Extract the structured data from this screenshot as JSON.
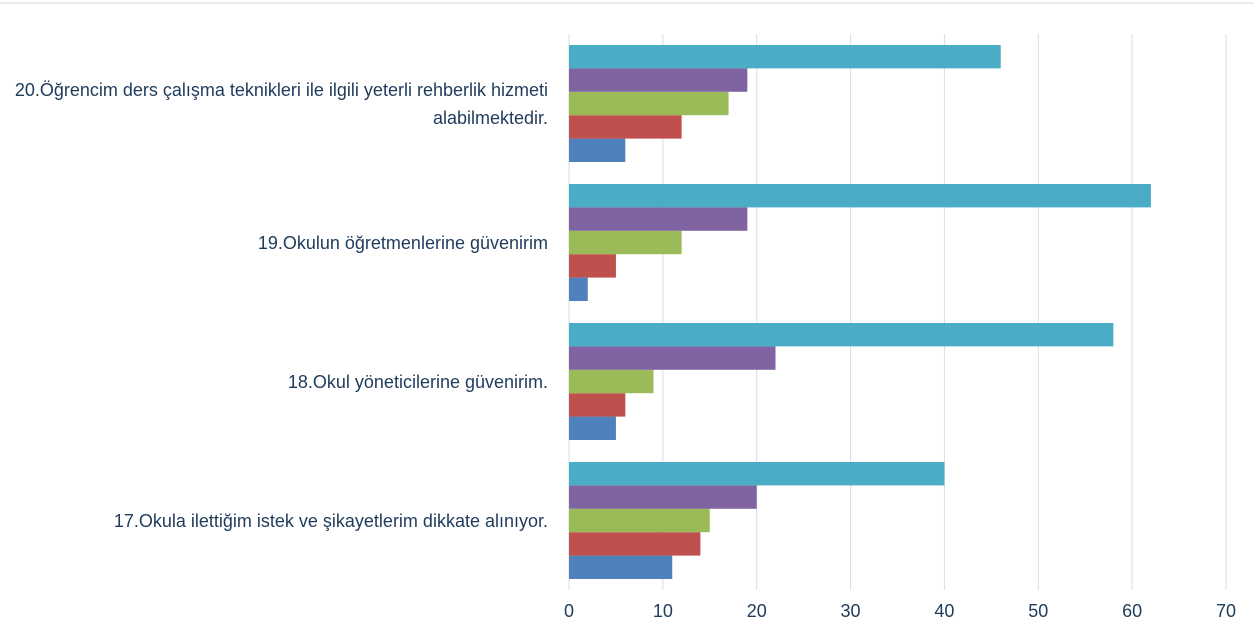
{
  "chart_data": {
    "type": "bar",
    "orientation": "horizontal",
    "categories": [
      "20.Öğrencim ders çalışma teknikleri ile ilgili yeterli rehberlik hizmeti alabilmektedir.",
      "19.Okulun öğretmenlerine güvenirim",
      "18.Okul yöneticilerine güvenirim.",
      "17.Okula ilettiğim istek ve şikayetlerim dikkate alınıyor."
    ],
    "series": [
      {
        "color": "#4f81bd",
        "values": [
          6,
          2,
          5,
          11
        ]
      },
      {
        "color": "#c0504d",
        "values": [
          12,
          5,
          6,
          14
        ]
      },
      {
        "color": "#9bbb59",
        "values": [
          17,
          12,
          9,
          15
        ]
      },
      {
        "color": "#8064a2",
        "values": [
          19,
          19,
          22,
          20
        ]
      },
      {
        "color": "#4bacc6",
        "values": [
          46,
          62,
          58,
          40
        ]
      }
    ],
    "xlim": [
      0,
      70
    ],
    "xticks": [
      0,
      10,
      20,
      30,
      40,
      50,
      60,
      70
    ],
    "grid": true
  }
}
